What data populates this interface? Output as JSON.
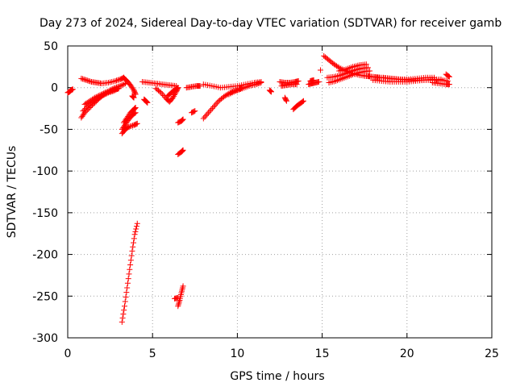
{
  "chart_data": {
    "type": "scatter",
    "title": "Day 273 of 2024, Sidereal Day-to-day VTEC variation (SDTVAR) for receiver gamb",
    "xlabel": "GPS time / hours",
    "ylabel": "SDTVAR / TECUs",
    "xlim": [
      0,
      25
    ],
    "ylim": [
      -300,
      50
    ],
    "xticks": [
      0,
      5,
      10,
      15,
      20,
      25
    ],
    "yticks": [
      50,
      0,
      -50,
      -100,
      -150,
      -200,
      -250,
      -300
    ],
    "grid": true,
    "marker": "+",
    "series_color": "#ff0000",
    "segments": [
      {
        "name": "arc-01",
        "points": [
          [
            0.0,
            -6
          ],
          [
            0.1,
            -5
          ],
          [
            0.2,
            -3
          ],
          [
            0.3,
            -2
          ]
        ]
      },
      {
        "name": "arc-02",
        "points": [
          [
            0.8,
            11
          ],
          [
            1.1,
            9
          ],
          [
            1.4,
            7
          ],
          [
            1.7,
            6
          ],
          [
            2.0,
            5
          ],
          [
            2.4,
            6
          ],
          [
            2.8,
            8
          ],
          [
            3.1,
            10
          ],
          [
            3.3,
            12
          ]
        ]
      },
      {
        "name": "arc-03",
        "points": [
          [
            0.8,
            -36
          ],
          [
            1.0,
            -30
          ],
          [
            1.3,
            -24
          ],
          [
            1.6,
            -18
          ],
          [
            1.9,
            -12
          ],
          [
            2.2,
            -7
          ],
          [
            2.5,
            -3
          ],
          [
            2.8,
            0
          ],
          [
            3.1,
            2
          ],
          [
            3.4,
            5
          ]
        ]
      },
      {
        "name": "arc-04",
        "points": [
          [
            0.9,
            -28
          ],
          [
            1.2,
            -22
          ],
          [
            1.5,
            -17
          ],
          [
            1.8,
            -13
          ],
          [
            2.1,
            -9
          ],
          [
            2.4,
            -6
          ],
          [
            2.7,
            -4
          ],
          [
            3.0,
            -1
          ]
        ]
      },
      {
        "name": "arc-05",
        "points": [
          [
            1.0,
            -20
          ],
          [
            1.3,
            -16
          ],
          [
            1.6,
            -12
          ],
          [
            1.9,
            -9
          ],
          [
            2.2,
            -6
          ],
          [
            2.5,
            -4
          ],
          [
            2.8,
            -2
          ],
          [
            3.0,
            -1
          ]
        ]
      },
      {
        "name": "arc-06",
        "points": [
          [
            3.3,
            12
          ],
          [
            3.5,
            8
          ],
          [
            3.7,
            3
          ],
          [
            3.9,
            -3
          ],
          [
            4.0,
            -8
          ]
        ]
      },
      {
        "name": "arc-07",
        "points": [
          [
            3.2,
            -50
          ],
          [
            3.4,
            -44
          ],
          [
            3.6,
            -38
          ],
          [
            3.8,
            -33
          ],
          [
            4.0,
            -30
          ]
        ]
      },
      {
        "name": "arc-08",
        "points": [
          [
            3.2,
            -55
          ],
          [
            3.4,
            -50
          ],
          [
            3.6,
            -47
          ],
          [
            3.9,
            -45
          ],
          [
            4.1,
            -43
          ]
        ]
      },
      {
        "name": "arc-09",
        "points": [
          [
            3.3,
            -42
          ],
          [
            3.5,
            -36
          ],
          [
            3.7,
            -30
          ],
          [
            3.9,
            -26
          ],
          [
            4.0,
            -24
          ]
        ]
      },
      {
        "name": "arc-10",
        "points": [
          [
            3.8,
            -10
          ],
          [
            3.9,
            -12
          ]
        ]
      },
      {
        "name": "arc-11",
        "points": [
          [
            4.5,
            -14
          ],
          [
            4.6,
            -16
          ],
          [
            4.7,
            -18
          ]
        ]
      },
      {
        "name": "arc-12",
        "points": [
          [
            3.2,
            -281
          ],
          [
            3.35,
            -262
          ],
          [
            3.5,
            -240
          ],
          [
            3.65,
            -218
          ],
          [
            3.8,
            -196
          ],
          [
            3.95,
            -176
          ],
          [
            4.1,
            -163
          ]
        ]
      },
      {
        "name": "arc-13",
        "points": [
          [
            4.4,
            7
          ],
          [
            4.8,
            6
          ],
          [
            5.2,
            5
          ],
          [
            5.6,
            4
          ],
          [
            6.0,
            3
          ],
          [
            6.4,
            2
          ]
        ]
      },
      {
        "name": "arc-14",
        "points": [
          [
            5.2,
            -1
          ],
          [
            5.5,
            -6
          ],
          [
            5.8,
            -13
          ],
          [
            6.0,
            -17
          ],
          [
            6.2,
            -12
          ],
          [
            6.4,
            -5
          ],
          [
            6.5,
            0
          ]
        ]
      },
      {
        "name": "arc-15",
        "points": [
          [
            5.9,
            -10
          ],
          [
            6.1,
            -6
          ],
          [
            6.3,
            -3
          ],
          [
            6.5,
            0
          ]
        ]
      },
      {
        "name": "arc-16",
        "points": [
          [
            6.5,
            -42
          ],
          [
            6.7,
            -40
          ],
          [
            6.8,
            -38
          ]
        ]
      },
      {
        "name": "arc-17",
        "points": [
          [
            6.5,
            -80
          ],
          [
            6.7,
            -77
          ],
          [
            6.8,
            -75
          ]
        ]
      },
      {
        "name": "arc-18",
        "points": [
          [
            6.5,
            -262
          ],
          [
            6.6,
            -255
          ],
          [
            6.7,
            -246
          ],
          [
            6.8,
            -238
          ]
        ]
      },
      {
        "name": "arc-19",
        "points": [
          [
            6.3,
            -253
          ],
          [
            6.5,
            -252
          ]
        ]
      },
      {
        "name": "arc-20",
        "points": [
          [
            7.0,
            0
          ],
          [
            7.3,
            1
          ],
          [
            7.6,
            2
          ],
          [
            7.8,
            2
          ]
        ]
      },
      {
        "name": "arc-21",
        "points": [
          [
            7.3,
            -30
          ],
          [
            7.5,
            -28
          ]
        ]
      },
      {
        "name": "arc-22",
        "points": [
          [
            8.0,
            -37
          ],
          [
            8.3,
            -30
          ],
          [
            8.6,
            -23
          ],
          [
            8.9,
            -16
          ],
          [
            9.2,
            -11
          ],
          [
            9.5,
            -7
          ],
          [
            9.8,
            -4
          ],
          [
            10.1,
            -2
          ],
          [
            10.3,
            0
          ]
        ]
      },
      {
        "name": "arc-23",
        "points": [
          [
            8.0,
            4
          ],
          [
            8.5,
            2
          ],
          [
            9.0,
            0
          ],
          [
            9.5,
            1
          ],
          [
            10.0,
            2
          ],
          [
            10.5,
            4
          ],
          [
            11.0,
            6
          ],
          [
            11.4,
            7
          ]
        ]
      },
      {
        "name": "arc-24",
        "points": [
          [
            9.5,
            -8
          ],
          [
            9.9,
            -4
          ],
          [
            10.3,
            -1
          ],
          [
            10.7,
            2
          ],
          [
            11.1,
            4
          ],
          [
            11.4,
            6
          ]
        ]
      },
      {
        "name": "arc-25",
        "points": [
          [
            11.9,
            -3
          ],
          [
            12.0,
            -5
          ]
        ]
      },
      {
        "name": "arc-26",
        "points": [
          [
            12.5,
            7
          ],
          [
            12.8,
            6
          ],
          [
            13.1,
            6
          ],
          [
            13.4,
            7
          ],
          [
            13.6,
            8
          ]
        ]
      },
      {
        "name": "arc-27",
        "points": [
          [
            12.6,
            2
          ],
          [
            12.9,
            3
          ],
          [
            13.2,
            4
          ],
          [
            13.5,
            4
          ]
        ]
      },
      {
        "name": "arc-28",
        "points": [
          [
            12.8,
            -12
          ],
          [
            12.9,
            -16
          ]
        ]
      },
      {
        "name": "arc-29",
        "points": [
          [
            13.3,
            -26
          ],
          [
            13.5,
            -22
          ],
          [
            13.7,
            -19
          ],
          [
            13.9,
            -16
          ]
        ]
      },
      {
        "name": "arc-30",
        "points": [
          [
            14.2,
            4
          ],
          [
            14.4,
            5
          ],
          [
            14.6,
            6
          ],
          [
            14.8,
            7
          ]
        ]
      },
      {
        "name": "arc-31",
        "points": [
          [
            14.3,
            8
          ],
          [
            14.5,
            9
          ]
        ]
      },
      {
        "name": "arc-32",
        "points": [
          [
            14.9,
            21
          ]
        ]
      },
      {
        "name": "arc-33",
        "points": [
          [
            15.1,
            38
          ],
          [
            15.4,
            33
          ],
          [
            15.7,
            28
          ],
          [
            16.0,
            24
          ],
          [
            16.4,
            20
          ],
          [
            16.8,
            17
          ],
          [
            17.2,
            15
          ],
          [
            17.6,
            14
          ],
          [
            18.0,
            13
          ],
          [
            18.4,
            12
          ]
        ]
      },
      {
        "name": "arc-34",
        "points": [
          [
            15.3,
            12
          ],
          [
            15.7,
            13
          ],
          [
            16.1,
            15
          ],
          [
            16.5,
            18
          ],
          [
            16.9,
            21
          ],
          [
            17.3,
            23
          ],
          [
            17.7,
            24
          ]
        ]
      },
      {
        "name": "arc-35",
        "points": [
          [
            15.4,
            6
          ],
          [
            15.8,
            8
          ],
          [
            16.2,
            11
          ],
          [
            16.6,
            14
          ],
          [
            17.0,
            17
          ],
          [
            17.4,
            19
          ],
          [
            17.8,
            20
          ]
        ]
      },
      {
        "name": "arc-36",
        "points": [
          [
            16.0,
            20
          ],
          [
            16.4,
            22
          ],
          [
            16.8,
            25
          ],
          [
            17.2,
            27
          ],
          [
            17.6,
            28
          ]
        ]
      },
      {
        "name": "arc-37",
        "points": [
          [
            17.5,
            14
          ],
          [
            18.0,
            13
          ],
          [
            18.5,
            12
          ],
          [
            19.0,
            11
          ],
          [
            19.5,
            10
          ],
          [
            20.0,
            9
          ],
          [
            20.5,
            9
          ],
          [
            21.0,
            9
          ],
          [
            21.5,
            9
          ],
          [
            22.0,
            9
          ],
          [
            22.4,
            8
          ]
        ]
      },
      {
        "name": "arc-38",
        "points": [
          [
            18.0,
            9
          ],
          [
            18.5,
            8
          ],
          [
            19.0,
            7
          ],
          [
            19.5,
            7
          ],
          [
            20.0,
            7
          ],
          [
            20.5,
            8
          ],
          [
            21.0,
            9
          ],
          [
            21.5,
            10
          ],
          [
            22.0,
            10
          ]
        ]
      },
      {
        "name": "arc-39",
        "points": [
          [
            18.6,
            12
          ],
          [
            19.1,
            11
          ],
          [
            19.6,
            10
          ],
          [
            20.1,
            10
          ],
          [
            20.6,
            11
          ],
          [
            21.1,
            12
          ],
          [
            21.6,
            12
          ]
        ]
      },
      {
        "name": "arc-40",
        "points": [
          [
            21.5,
            6
          ],
          [
            21.9,
            5
          ],
          [
            22.3,
            4
          ],
          [
            22.5,
            4
          ]
        ]
      },
      {
        "name": "arc-41",
        "points": [
          [
            22.3,
            16
          ],
          [
            22.5,
            13
          ]
        ]
      }
    ]
  }
}
